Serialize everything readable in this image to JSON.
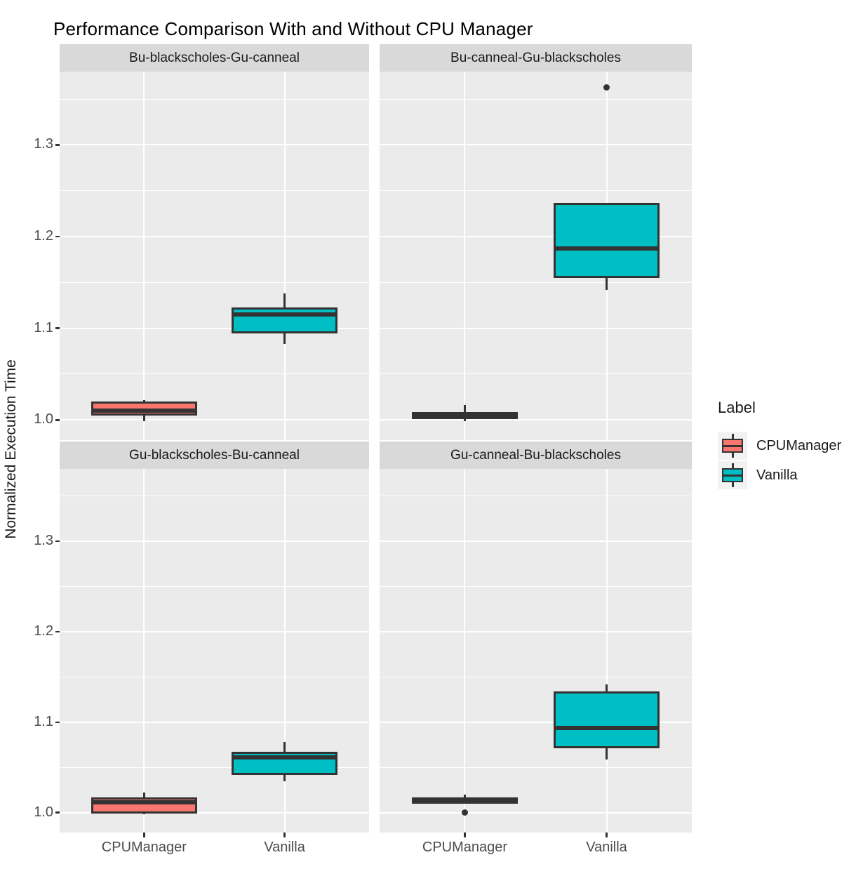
{
  "title": "Performance Comparison With and Without CPU Manager",
  "y_axis_label": "Normalized Execution Time",
  "legend": {
    "title": "Label",
    "entries": [
      {
        "label": "CPUManager",
        "color": "#F8766D"
      },
      {
        "label": "Vanilla",
        "color": "#00BFC4"
      }
    ]
  },
  "colors": {
    "fill_cpumanager": "#F8766D",
    "fill_vanilla": "#00BFC4",
    "box_outline": "#333333",
    "panel_background": "#EBEBEB",
    "strip_background": "#D9D9D9",
    "gridline": "#FFFFFF",
    "axis_text": "#4D4D4D",
    "text": "#1a1a1a",
    "legend_key_background": "#F2F2F2"
  },
  "chart_data": {
    "type": "boxplot",
    "faceted": true,
    "x_categories": [
      "CPUManager",
      "Vanilla"
    ],
    "y_ticks": [
      1.0,
      1.1,
      1.2,
      1.3
    ],
    "y_minor_ticks": [
      1.05,
      1.15,
      1.25,
      1.35
    ],
    "ylim": [
      0.978,
      1.38
    ],
    "grid": true,
    "legend_position": "right",
    "facets": [
      {
        "label": "Bu-blackscholes-Gu-canneal",
        "row": 0,
        "col": 0,
        "boxes": [
          {
            "category": "CPUManager",
            "min": 0.999,
            "q1": 1.005,
            "median": 1.01,
            "q3": 1.02,
            "max": 1.022,
            "outliers": []
          },
          {
            "category": "Vanilla",
            "min": 1.083,
            "q1": 1.094,
            "median": 1.115,
            "q3": 1.123,
            "max": 1.138,
            "outliers": []
          }
        ]
      },
      {
        "label": "Bu-canneal-Gu-blackscholes",
        "row": 0,
        "col": 1,
        "boxes": [
          {
            "category": "CPUManager",
            "min": 0.999,
            "q1": 1.001,
            "median": 1.005,
            "q3": 1.009,
            "max": 1.016,
            "outliers": []
          },
          {
            "category": "Vanilla",
            "min": 1.142,
            "q1": 1.155,
            "median": 1.187,
            "q3": 1.237,
            "max": 1.237,
            "outliers": [
              1.363
            ]
          }
        ]
      },
      {
        "label": "Gu-blackscholes-Bu-canneal",
        "row": 1,
        "col": 0,
        "boxes": [
          {
            "category": "CPUManager",
            "min": 0.998,
            "q1": 0.999,
            "median": 1.011,
            "q3": 1.017,
            "max": 1.022,
            "outliers": []
          },
          {
            "category": "Vanilla",
            "min": 1.035,
            "q1": 1.042,
            "median": 1.061,
            "q3": 1.067,
            "max": 1.078,
            "outliers": []
          }
        ]
      },
      {
        "label": "Gu-canneal-Bu-blackscholes",
        "row": 1,
        "col": 1,
        "boxes": [
          {
            "category": "CPUManager",
            "min": 1.01,
            "q1": 1.01,
            "median": 1.013,
            "q3": 1.017,
            "max": 1.02,
            "outliers": [
              1.0
            ]
          },
          {
            "category": "Vanilla",
            "min": 1.059,
            "q1": 1.071,
            "median": 1.094,
            "q3": 1.134,
            "max": 1.142,
            "outliers": []
          }
        ]
      }
    ]
  }
}
